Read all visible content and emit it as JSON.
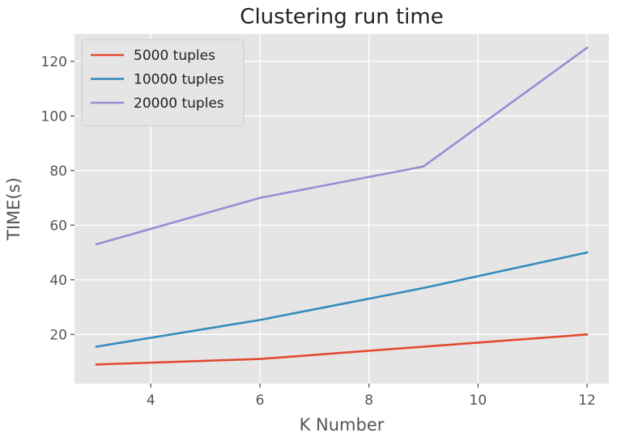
{
  "chart_data": {
    "type": "line",
    "title": "Clustering run time",
    "xlabel": "K Number",
    "ylabel": "TIME(s)",
    "xlim": [
      2.6,
      12.4
    ],
    "ylim": [
      2.0,
      130.0
    ],
    "xticks": [
      4,
      6,
      8,
      10,
      12
    ],
    "yticks": [
      20,
      40,
      60,
      80,
      100,
      120
    ],
    "grid": true,
    "legend_position": "top-left",
    "style": "ggplot",
    "x": [
      3,
      6,
      9,
      12
    ],
    "series": [
      {
        "name": "5000 tuples",
        "color": "#E24A33",
        "values": [
          9,
          11,
          15.5,
          20
        ]
      },
      {
        "name": "10000 tuples",
        "color": "#348ABD",
        "values": [
          15.5,
          25.3,
          37,
          50
        ]
      },
      {
        "name": "20000 tuples",
        "color": "#988ED5",
        "values": [
          53,
          70,
          81.5,
          125
        ]
      }
    ]
  },
  "colors": {
    "plot_background": "#E5E5E5",
    "grid": "#FFFFFF",
    "legend_background": "#E5E5E5",
    "legend_border": "#CCCCCC"
  }
}
